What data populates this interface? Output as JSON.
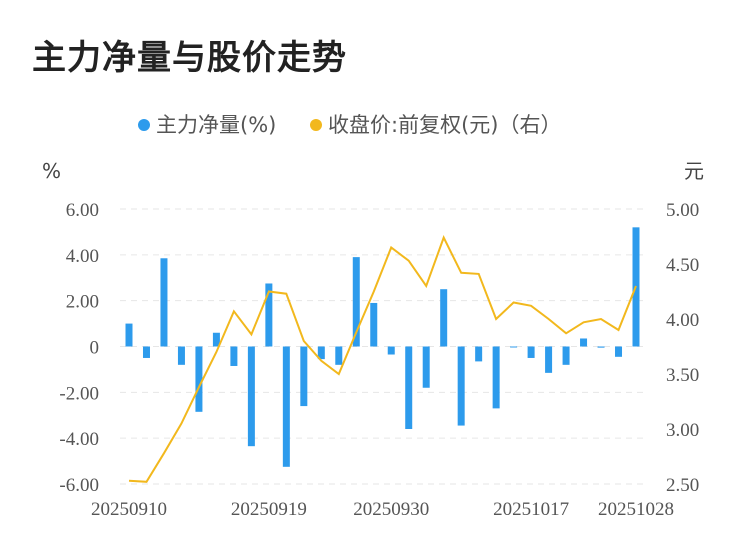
{
  "title": "主力净量与股价走势",
  "colors": {
    "bar": "#2d9bec",
    "line": "#f2b81d",
    "grid": "#e6e6e6",
    "text": "#555555"
  },
  "chart_data": {
    "type": "bar+line",
    "legend": {
      "placement": "top-center",
      "items": [
        "主力净量(%)",
        "收盘价:前复权(元)（右）"
      ]
    },
    "left_axis": {
      "unit": "%",
      "ticks": [
        "6.00",
        "4.00",
        "2.00",
        "0",
        "-2.00",
        "-4.00",
        "-6.00"
      ],
      "ylim": [
        -6,
        6
      ]
    },
    "right_axis": {
      "unit": "元",
      "ticks": [
        "5.00",
        "4.50",
        "4.00",
        "3.50",
        "3.00",
        "2.50"
      ],
      "ylim": [
        2.5,
        5.0
      ]
    },
    "x_tick_labels": [
      "20250910",
      "20250919",
      "20250930",
      "20251017",
      "20251028"
    ],
    "x_tick_positions": [
      0,
      8,
      15,
      23,
      29
    ],
    "series": [
      {
        "name": "主力净量(%)",
        "type": "bar",
        "axis": "left",
        "values": [
          1.0,
          -0.5,
          3.85,
          -0.8,
          -2.85,
          0.6,
          -0.85,
          -4.35,
          2.75,
          -5.25,
          -2.6,
          -0.55,
          -0.8,
          3.9,
          1.9,
          -0.35,
          -3.6,
          -1.8,
          2.5,
          -3.45,
          -0.65,
          -2.7,
          0.0,
          -0.5,
          -1.15,
          -0.8,
          0.35,
          -0.05,
          -0.45,
          5.2
        ]
      },
      {
        "name": "收盘价:前复权(元)（右）",
        "type": "line",
        "axis": "right",
        "values": [
          2.53,
          2.52,
          2.78,
          3.05,
          3.38,
          3.7,
          4.07,
          3.86,
          4.25,
          4.23,
          3.8,
          3.62,
          3.5,
          3.88,
          4.25,
          4.65,
          4.53,
          4.3,
          4.74,
          4.42,
          4.41,
          4.0,
          4.15,
          4.12,
          4.0,
          3.87,
          3.97,
          4.0,
          3.9,
          4.3
        ]
      }
    ]
  }
}
